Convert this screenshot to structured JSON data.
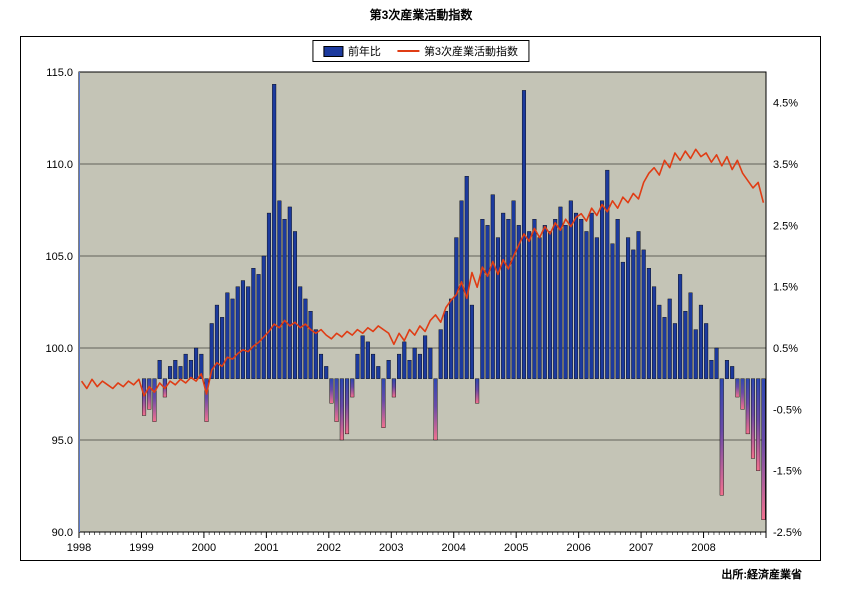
{
  "page": {
    "title": "第3次産業活動指数",
    "source": "出所:経済産業省"
  },
  "legend": {
    "bar_label": "前年比",
    "line_label": "第3次産業活動指数"
  },
  "colors": {
    "plot_bg": "#c4c4b6",
    "bar_positive": "#1c3a9e",
    "bar_negative_top": "#2d47b2",
    "bar_negative_mid": "#6a4aa8",
    "bar_negative_tip": "#f2718f",
    "line": "#e03c14",
    "grid": "#000000",
    "left_axis_line": "#5a78c8"
  },
  "chart_data": {
    "type": "bar",
    "subtype": "combo-bar-line",
    "title": "第3次産業活動指数",
    "x_unit": "month",
    "x_start": "1998-01",
    "x_end": "2008-12",
    "x_year_labels": [
      "1998",
      "1999",
      "2000",
      "2001",
      "2002",
      "2003",
      "2004",
      "2005",
      "2006",
      "2007",
      "2008"
    ],
    "left_axis": {
      "min": 90.0,
      "max": 115.0,
      "tick_labels": [
        "115.0",
        "110.0",
        "105.0",
        "100.0",
        "95.0",
        "90.0"
      ],
      "grid_values": [
        95,
        100,
        105,
        110
      ],
      "applies_to": "第3次産業活動指数"
    },
    "right_axis": {
      "min": -2.5,
      "max": 5.0,
      "tick_labels": [
        "4.5%",
        "3.5%",
        "2.5%",
        "1.5%",
        "0.5%",
        "-0.5%",
        "-1.5%",
        "-2.5%"
      ],
      "applies_to": "前年比"
    },
    "series": [
      {
        "name": "前年比",
        "type": "bar",
        "axis": "right",
        "values": [
          null,
          null,
          null,
          null,
          null,
          null,
          null,
          null,
          null,
          null,
          null,
          null,
          -0.6,
          -0.5,
          -0.7,
          0.3,
          -0.3,
          0.2,
          0.3,
          0.2,
          0.4,
          0.3,
          0.5,
          0.4,
          -0.7,
          0.9,
          1.2,
          1.0,
          1.4,
          1.3,
          1.5,
          1.6,
          1.5,
          1.8,
          1.7,
          2.0,
          2.7,
          4.8,
          2.9,
          2.6,
          2.8,
          2.4,
          1.5,
          1.3,
          1.1,
          0.8,
          0.4,
          0.2,
          -0.4,
          -0.7,
          -1.0,
          -0.9,
          -0.3,
          0.4,
          0.7,
          0.6,
          0.4,
          0.2,
          -0.8,
          0.3,
          -0.3,
          0.4,
          0.6,
          0.3,
          0.5,
          0.4,
          0.7,
          0.5,
          -1.0,
          0.8,
          1.1,
          1.3,
          2.3,
          2.9,
          3.3,
          1.2,
          -0.4,
          2.6,
          2.5,
          3.0,
          2.3,
          2.7,
          2.6,
          2.9,
          2.5,
          4.7,
          2.4,
          2.6,
          2.3,
          2.5,
          2.4,
          2.6,
          2.8,
          2.5,
          2.9,
          2.7,
          2.6,
          2.4,
          2.7,
          2.3,
          2.9,
          3.4,
          2.2,
          2.6,
          1.9,
          2.3,
          2.1,
          2.4,
          2.1,
          1.8,
          1.5,
          1.2,
          1.0,
          1.3,
          0.9,
          1.7,
          1.1,
          1.4,
          0.8,
          1.2,
          0.9,
          0.3,
          0.5,
          -1.9,
          0.3,
          0.2,
          -0.3,
          -0.5,
          -0.9,
          -1.3,
          -1.5,
          -2.3
        ]
      },
      {
        "name": "第3次産業活動指数",
        "type": "line",
        "axis": "left",
        "values": [
          98.2,
          97.8,
          98.3,
          97.9,
          98.2,
          98.0,
          97.8,
          98.1,
          97.9,
          98.2,
          98.0,
          98.3,
          97.4,
          97.9,
          97.6,
          98.1,
          97.8,
          98.2,
          98.0,
          98.3,
          98.1,
          98.4,
          98.2,
          98.6,
          97.5,
          98.8,
          99.2,
          99.0,
          99.5,
          99.4,
          99.7,
          99.9,
          99.8,
          100.1,
          100.3,
          100.6,
          100.9,
          101.3,
          101.1,
          101.5,
          101.2,
          101.4,
          101.1,
          101.3,
          101.0,
          100.8,
          101.0,
          100.7,
          100.5,
          100.8,
          100.6,
          100.9,
          100.7,
          101.0,
          100.8,
          101.1,
          100.9,
          101.2,
          101.0,
          100.8,
          100.2,
          100.8,
          100.4,
          101.0,
          100.7,
          101.2,
          100.9,
          101.5,
          101.8,
          101.4,
          102.2,
          102.6,
          102.9,
          103.6,
          102.7,
          104.1,
          103.3,
          104.4,
          103.9,
          104.7,
          104.0,
          104.8,
          104.3,
          105.0,
          105.6,
          106.2,
          105.8,
          106.5,
          106.0,
          106.6,
          106.2,
          106.8,
          106.4,
          107.0,
          106.6,
          107.1,
          107.3,
          106.9,
          107.6,
          107.2,
          107.8,
          107.4,
          108.0,
          107.6,
          108.2,
          107.9,
          108.4,
          108.1,
          109.0,
          109.5,
          109.8,
          109.4,
          110.2,
          109.8,
          110.6,
          110.2,
          110.7,
          110.3,
          110.8,
          110.4,
          110.6,
          110.1,
          110.5,
          109.9,
          110.4,
          109.7,
          110.2,
          109.5,
          109.1,
          108.7,
          109.0,
          107.9
        ]
      }
    ],
    "legend_position": "top-center",
    "grid": true
  }
}
